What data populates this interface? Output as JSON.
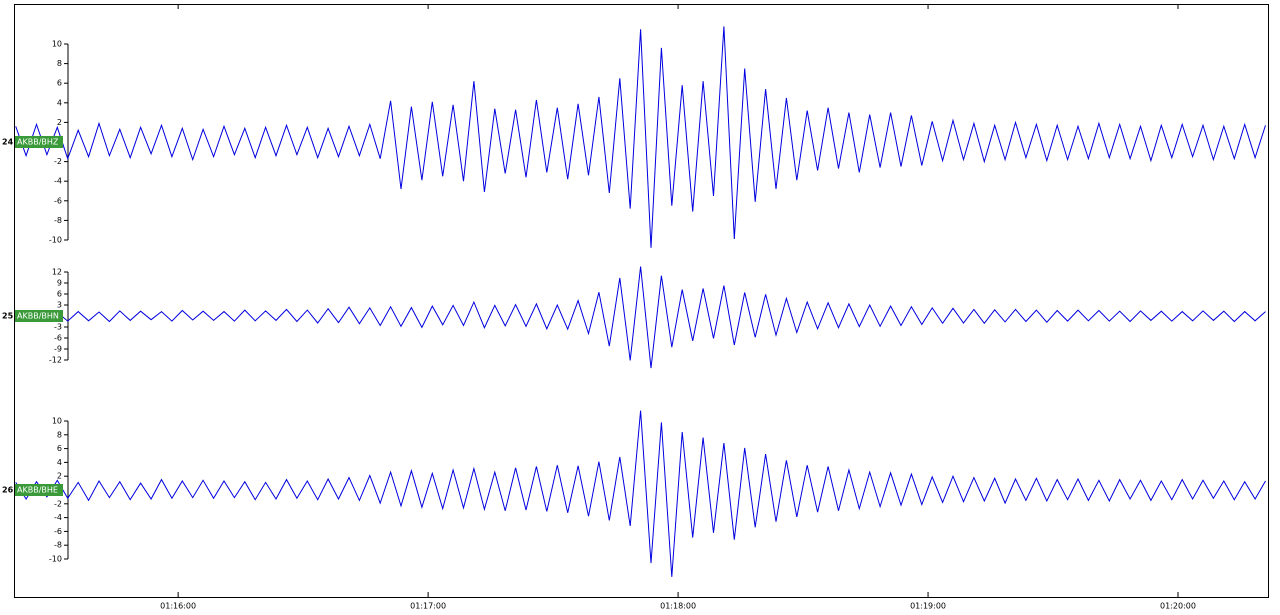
{
  "chart_data": {
    "type": "seismogram",
    "x": [
      21,
      23.5,
      26,
      28.5,
      31,
      33.5,
      36,
      38.5,
      41,
      43.5,
      46,
      48.5,
      51,
      53.5,
      56,
      58.5,
      61,
      63.5,
      66,
      68.5,
      71,
      73.5,
      76,
      78.5,
      81,
      83.5,
      86,
      88.5,
      91,
      93.5,
      96,
      98.5,
      101,
      103.5,
      106,
      108.5,
      111,
      113.5,
      116,
      118.5,
      121,
      123.5,
      126,
      128.5,
      131,
      133.5,
      136,
      138.5,
      141,
      143.5,
      146,
      148.5,
      151,
      153.5,
      156,
      158.5,
      161,
      163.5,
      166,
      168.5,
      171,
      173.5,
      176,
      178.5,
      181,
      183.5,
      186,
      188.5,
      191,
      193.5,
      196,
      198.5,
      201,
      203.5,
      206,
      208.5,
      211,
      213.5,
      216,
      218.5,
      221,
      223.5,
      226,
      228.5,
      231,
      233.5,
      236,
      238.5,
      241,
      243.5,
      246,
      248.5,
      251,
      253.5,
      256,
      258.5,
      261,
      263.5,
      266,
      268.5,
      271,
      273.5,
      276,
      278.5,
      281,
      283.5,
      286,
      288.5,
      291,
      293.5,
      296,
      298.5,
      301,
      303.5,
      306,
      308.5,
      311,
      313.5,
      316,
      318.5,
      321
    ],
    "xlim": [
      20.6,
      321.6
    ],
    "xticks": [
      {
        "value": 60,
        "label": "01:16:00"
      },
      {
        "value": 120,
        "label": "01:17:00"
      },
      {
        "value": 180,
        "label": "01:18:00"
      },
      {
        "value": 240,
        "label": "01:19:00"
      },
      {
        "value": 300,
        "label": "01:20:00"
      }
    ],
    "traces": [
      {
        "index": "24",
        "name": "AKBB/BHZ",
        "color": "#0000e0",
        "ylim": [
          -10,
          10
        ],
        "yticks": [
          10,
          8,
          6,
          4,
          2,
          -2,
          -4,
          -6,
          -8,
          -10
        ],
        "values": [
          1.6,
          -1.4,
          1.8,
          -1.3,
          1.5,
          -1.7,
          1.2,
          -1.5,
          1.9,
          -1.4,
          1.3,
          -1.6,
          1.5,
          -1.2,
          1.7,
          -1.5,
          1.4,
          -1.8,
          1.3,
          -1.5,
          1.6,
          -1.3,
          1.4,
          -1.6,
          1.5,
          -1.4,
          1.7,
          -1.3,
          1.5,
          -1.6,
          1.4,
          -1.5,
          1.6,
          -1.4,
          1.8,
          -1.7,
          4.2,
          -4.8,
          3.6,
          -3.9,
          4.1,
          -3.5,
          3.8,
          -4.0,
          6.2,
          -5.1,
          3.4,
          -3.2,
          3.3,
          -3.6,
          4.3,
          -3.1,
          3.5,
          -3.8,
          3.9,
          -3.4,
          4.6,
          -5.2,
          6.5,
          -6.8,
          11.5,
          -10.8,
          9.6,
          -6.5,
          5.8,
          -7.1,
          6.2,
          -5.5,
          11.8,
          -9.9,
          7.5,
          -6.1,
          5.4,
          -4.8,
          4.5,
          -3.9,
          3.2,
          -2.9,
          3.5,
          -2.7,
          3.0,
          -3.1,
          2.8,
          -2.6,
          3.0,
          -2.5,
          2.7,
          -2.4,
          2.1,
          -1.9,
          2.2,
          -1.8,
          1.9,
          -2.0,
          1.7,
          -1.8,
          2.0,
          -1.6,
          1.8,
          -1.9,
          1.7,
          -1.8,
          1.6,
          -1.7,
          1.9,
          -1.6,
          1.8,
          -1.7,
          1.6,
          -1.9,
          1.7,
          -1.6,
          1.8,
          -1.5,
          1.7,
          -1.8,
          1.6,
          -1.7,
          1.8,
          -1.6,
          1.7
        ]
      },
      {
        "index": "25",
        "name": "AKBB/BHN",
        "color": "#0000e0",
        "ylim": [
          -12,
          12
        ],
        "yticks": [
          12,
          9,
          6,
          3,
          -3,
          -6,
          -9,
          -12
        ],
        "values": [
          1.3,
          -1.1,
          1.5,
          -1.2,
          1.0,
          -1.4,
          1.2,
          -1.3,
          1.1,
          -1.5,
          1.4,
          -1.2,
          1.3,
          -1.0,
          1.2,
          -1.4,
          1.5,
          -1.1,
          1.3,
          -1.2,
          1.2,
          -1.4,
          1.6,
          -1.3,
          1.4,
          -1.2,
          1.8,
          -1.5,
          1.6,
          -1.9,
          2.0,
          -1.8,
          2.4,
          -2.1,
          2.2,
          -2.6,
          2.5,
          -2.8,
          2.3,
          -3.1,
          2.7,
          -2.4,
          2.9,
          -2.6,
          3.8,
          -3.2,
          2.9,
          -2.7,
          3.1,
          -2.8,
          3.3,
          -3.5,
          3.0,
          -3.6,
          4.2,
          -4.8,
          6.5,
          -8.2,
          10.4,
          -12.1,
          13.5,
          -14.2,
          11.0,
          -8.5,
          7.2,
          -6.8,
          7.5,
          -6.1,
          8.3,
          -7.9,
          6.4,
          -5.8,
          5.9,
          -5.2,
          4.8,
          -4.5,
          3.8,
          -3.5,
          3.6,
          -3.2,
          3.3,
          -2.9,
          3.0,
          -2.8,
          2.7,
          -2.6,
          2.5,
          -2.3,
          2.2,
          -2.0,
          2.1,
          -1.9,
          1.8,
          -2.0,
          1.7,
          -1.6,
          1.8,
          -1.5,
          1.6,
          -1.7,
          1.5,
          -1.4,
          1.6,
          -1.3,
          1.5,
          -1.4,
          1.3,
          -1.5,
          1.4,
          -1.2,
          1.3,
          -1.4,
          1.2,
          -1.3,
          1.4,
          -1.2,
          1.3,
          -1.5,
          1.2,
          -1.3,
          1.2
        ]
      },
      {
        "index": "26",
        "name": "AKBB/BHE",
        "color": "#0000e0",
        "ylim": [
          -10,
          10
        ],
        "yticks": [
          10,
          8,
          6,
          4,
          2,
          -2,
          -4,
          -6,
          -8,
          -10
        ],
        "values": [
          1.1,
          -1.3,
          1.2,
          -1.0,
          1.4,
          -1.2,
          1.1,
          -1.5,
          1.3,
          -1.1,
          1.2,
          -1.4,
          1.0,
          -1.3,
          1.5,
          -1.2,
          1.3,
          -1.1,
          1.4,
          -1.2,
          1.3,
          -1.1,
          1.2,
          -1.4,
          1.1,
          -1.3,
          1.5,
          -1.2,
          1.3,
          -1.4,
          1.6,
          -1.3,
          1.8,
          -1.5,
          2.1,
          -1.9,
          2.6,
          -2.3,
          2.8,
          -2.5,
          2.4,
          -2.7,
          2.9,
          -2.6,
          3.1,
          -2.8,
          2.6,
          -3.0,
          3.2,
          -2.9,
          3.4,
          -3.1,
          3.6,
          -3.3,
          3.5,
          -3.8,
          4.1,
          -4.4,
          4.8,
          -5.2,
          11.5,
          -10.6,
          9.8,
          -12.6,
          8.4,
          -6.9,
          7.6,
          -6.2,
          6.8,
          -7.2,
          6.1,
          -5.4,
          5.2,
          -4.6,
          4.3,
          -3.9,
          3.6,
          -3.2,
          3.4,
          -3.0,
          2.9,
          -2.7,
          2.6,
          -2.4,
          2.5,
          -2.2,
          2.3,
          -2.1,
          1.9,
          -1.8,
          2.0,
          -1.7,
          1.8,
          -1.6,
          1.7,
          -1.9,
          1.6,
          -1.5,
          1.7,
          -1.6,
          1.5,
          -1.4,
          1.6,
          -1.5,
          1.4,
          -1.6,
          1.5,
          -1.3,
          1.4,
          -1.5,
          1.3,
          -1.4,
          1.5,
          -1.3,
          1.4,
          -1.2,
          1.3,
          -1.4,
          1.2,
          -1.3,
          1.3
        ]
      }
    ]
  }
}
